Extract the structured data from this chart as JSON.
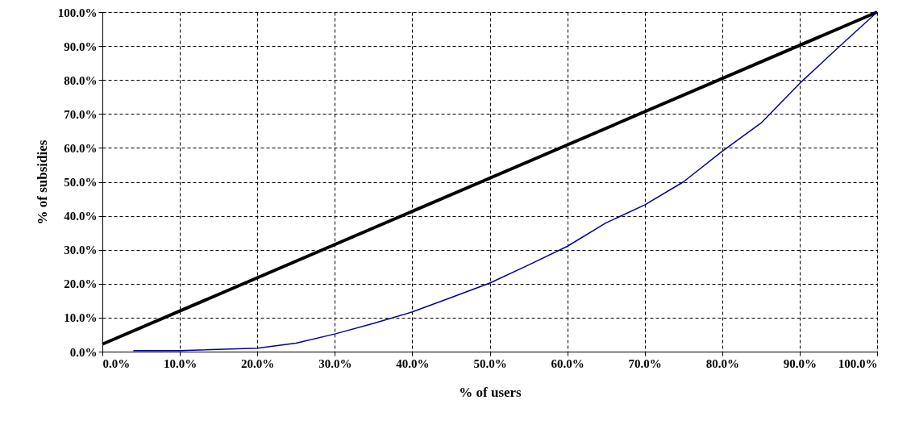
{
  "chart_data": {
    "type": "line",
    "xlabel": "% of users",
    "ylabel": "% of subsidies",
    "xlim": [
      0,
      100
    ],
    "ylim": [
      0,
      100
    ],
    "xticks": [
      {
        "value": 0,
        "label": "0.0%"
      },
      {
        "value": 10,
        "label": "10.0%"
      },
      {
        "value": 20,
        "label": "20.0%"
      },
      {
        "value": 30,
        "label": "30.0%"
      },
      {
        "value": 40,
        "label": "40.0%"
      },
      {
        "value": 50,
        "label": "50.0%"
      },
      {
        "value": 60,
        "label": "60.0%"
      },
      {
        "value": 70,
        "label": "70.0%"
      },
      {
        "value": 80,
        "label": "80.0%"
      },
      {
        "value": 90,
        "label": "90.0%"
      },
      {
        "value": 100,
        "label": "100.0%"
      }
    ],
    "yticks": [
      {
        "value": 0,
        "label": "0.0%"
      },
      {
        "value": 10,
        "label": "10.0%"
      },
      {
        "value": 20,
        "label": "20.0%"
      },
      {
        "value": 30,
        "label": "30.0%"
      },
      {
        "value": 40,
        "label": "40.0%"
      },
      {
        "value": 50,
        "label": "50.0%"
      },
      {
        "value": 60,
        "label": "60.0%"
      },
      {
        "value": 70,
        "label": "70.0%"
      },
      {
        "value": 80,
        "label": "80.0%"
      },
      {
        "value": 90,
        "label": "90.0%"
      },
      {
        "value": 100,
        "label": "100.0%"
      }
    ],
    "grid": true,
    "marker": "none",
    "series": [
      {
        "color": "#000000",
        "x": [
          0,
          100
        ],
        "values": [
          2.2,
          100
        ]
      },
      {
        "color": "#000099",
        "x": [
          4,
          10,
          20,
          25,
          30,
          35,
          40,
          45,
          50,
          55,
          60,
          65,
          70,
          75,
          80,
          85,
          90,
          95,
          100
        ],
        "values": [
          0.3,
          0.3,
          1,
          2.5,
          5.2,
          8.3,
          11.7,
          15.9,
          20.2,
          25.5,
          31,
          37.9,
          43.2,
          50,
          59,
          67.3,
          79,
          89.6,
          100
        ]
      }
    ]
  }
}
